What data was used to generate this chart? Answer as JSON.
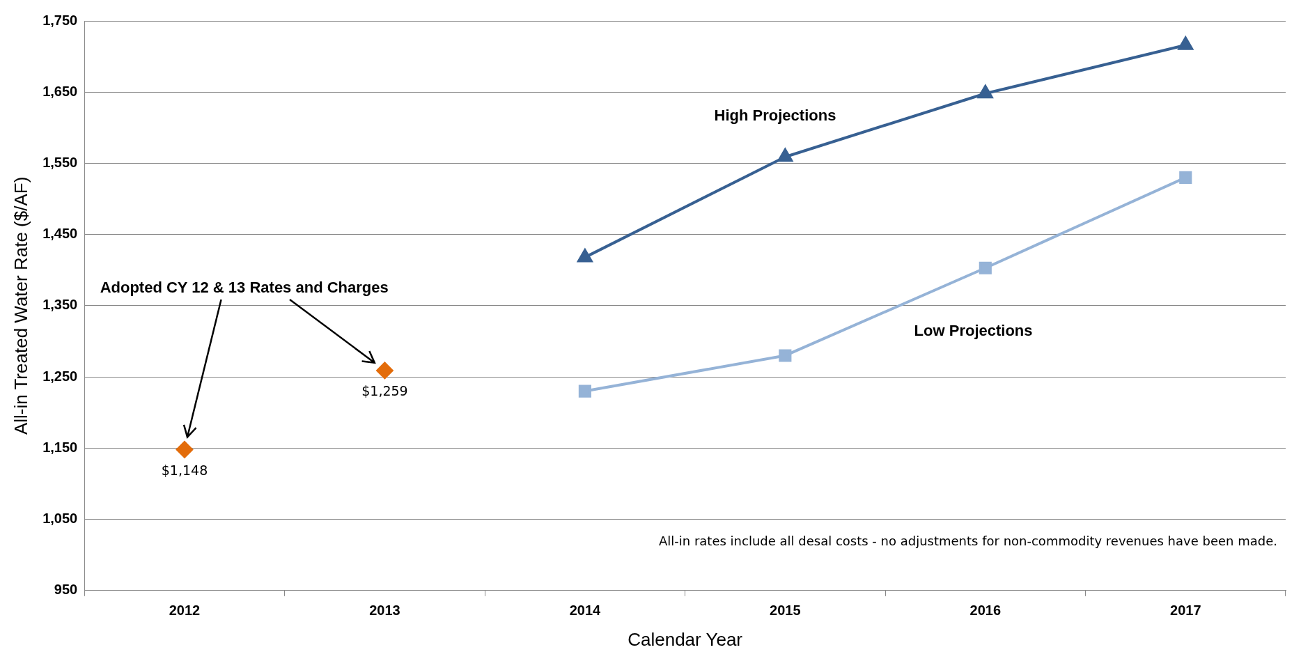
{
  "chart_data": {
    "type": "line",
    "xlabel": "Calendar Year",
    "ylabel": "All-in Treated Water Rate ($/AF)",
    "categories": [
      "2012",
      "2013",
      "2014",
      "2015",
      "2016",
      "2017"
    ],
    "series": [
      {
        "type": "scatter",
        "color": "#e36c0a",
        "marker": "diamond",
        "values": [
          1148,
          1259,
          null,
          null,
          null,
          null
        ],
        "value_labels": [
          "$1,148",
          "$1,259",
          null,
          null,
          null,
          null
        ]
      },
      {
        "name": "High Projections",
        "color": "#376092",
        "marker": "triangle",
        "values": [
          null,
          null,
          1418,
          1559,
          1648,
          1716
        ]
      },
      {
        "name": "Low Projections",
        "color": "#95b3d7",
        "marker": "square",
        "values": [
          null,
          null,
          1230,
          1280,
          1403,
          1530
        ]
      }
    ],
    "ylim": [
      950,
      1750
    ],
    "yticks": [
      {
        "value": 950,
        "label": "950"
      },
      {
        "value": 1050,
        "label": "1,050"
      },
      {
        "value": 1150,
        "label": "1,150"
      },
      {
        "value": 1250,
        "label": "1,250"
      },
      {
        "value": 1350,
        "label": "1,350"
      },
      {
        "value": 1450,
        "label": "1,450"
      },
      {
        "value": 1550,
        "label": "1,550"
      },
      {
        "value": 1650,
        "label": "1,650"
      },
      {
        "value": 1750,
        "label": "1,750"
      }
    ],
    "grid": "y",
    "legend": false,
    "line_style": "solid",
    "annotations": [
      "Adopted CY 12 & 13 Rates and Charges",
      "All-in rates include all desal costs - no adjustments for non-commodity revenues have been made."
    ]
  }
}
